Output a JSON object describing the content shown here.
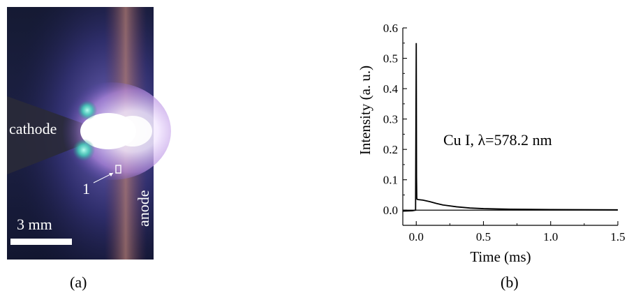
{
  "figure": {
    "panel_a_label": "(a)",
    "panel_b_label": "(b)"
  },
  "photo": {
    "cathode_label": "cathode",
    "anode_label": "anode",
    "scale_label": "3 mm",
    "point_label": "1"
  },
  "chart_data": {
    "type": "line",
    "xlabel": "Time (ms)",
    "ylabel": "Intensity (a. u.)",
    "xlim": [
      -0.1,
      1.5
    ],
    "ylim": [
      -0.05,
      0.6
    ],
    "x_ticks": [
      "0.0",
      "0.5",
      "1.0",
      "1.5"
    ],
    "y_ticks": [
      "0.0",
      "0.1",
      "0.2",
      "0.3",
      "0.4",
      "0.5",
      "0.6"
    ],
    "annotation": "Cu I, λ=578.2 nm",
    "series": [
      {
        "x": [
          -0.1,
          -0.03,
          -0.005,
          0.0,
          0.002,
          0.004,
          0.006,
          0.01,
          0.05,
          0.1,
          0.15,
          0.2,
          0.3,
          0.4,
          0.5,
          0.7,
          1.0,
          1.5
        ],
        "y": [
          -0.003,
          -0.002,
          0.0,
          0.55,
          0.11,
          0.04,
          0.036,
          0.035,
          0.033,
          0.028,
          0.022,
          0.017,
          0.011,
          0.007,
          0.005,
          0.003,
          0.002,
          0.001
        ]
      }
    ],
    "baseline": 0.0
  }
}
